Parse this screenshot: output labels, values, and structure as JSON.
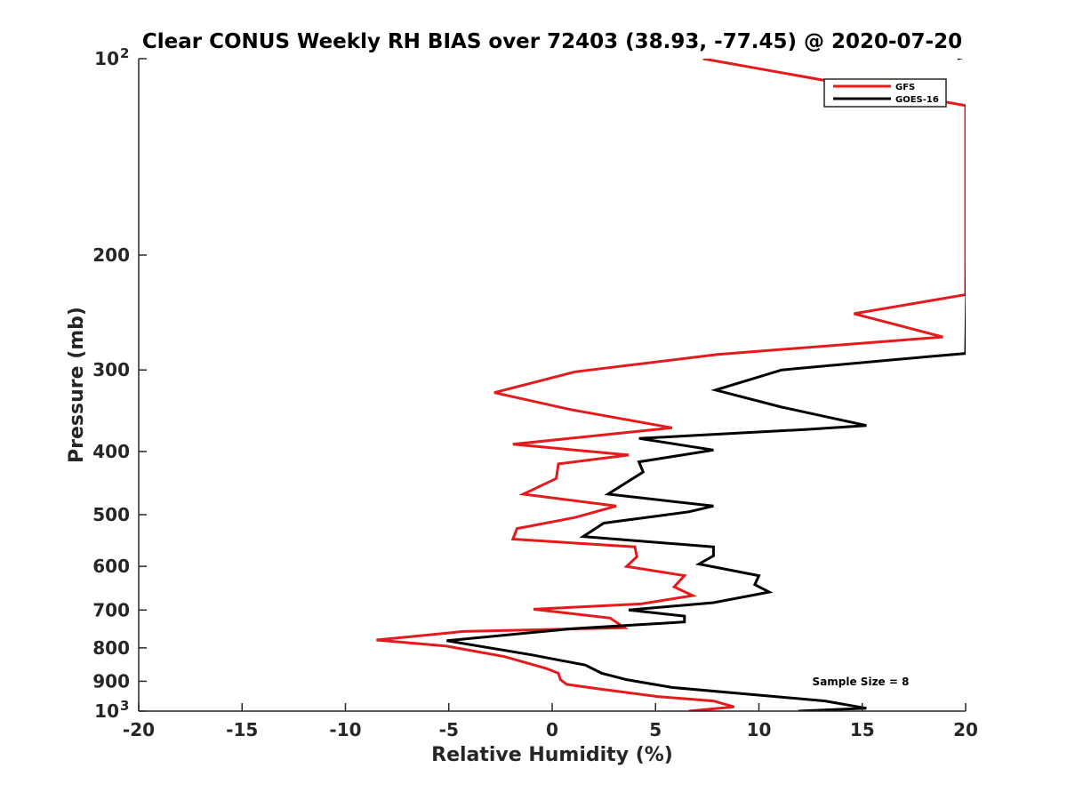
{
  "chart_data": {
    "type": "line",
    "title": "Clear CONUS Weekly RH BIAS over 72403 (38.93, -77.45) @ 2020-07-20",
    "xlabel": "Relative Humidity (%)",
    "ylabel": "Pressure (mb)",
    "xlim": [
      -20,
      20
    ],
    "ylim": [
      100,
      1000
    ],
    "y_scale": "log",
    "y_reversed": true,
    "grid": false,
    "legend_position": "top-right",
    "x_ticks": [
      "-20",
      "-15",
      "-10",
      "-5",
      "0",
      "5",
      "10",
      "15",
      "20"
    ],
    "y_ticks": [
      {
        "value": 100,
        "base": "10",
        "exp": "2"
      },
      {
        "value": 200,
        "label": "200"
      },
      {
        "value": 300,
        "label": "300"
      },
      {
        "value": 400,
        "label": "400"
      },
      {
        "value": 500,
        "label": "500"
      },
      {
        "value": 600,
        "label": "600"
      },
      {
        "value": 700,
        "label": "700"
      },
      {
        "value": 800,
        "label": "800"
      },
      {
        "value": 900,
        "label": "900"
      },
      {
        "value": 1000,
        "base": "10",
        "exp": "3"
      }
    ],
    "annotation": "Sample Size = 8",
    "series": [
      {
        "name": "GFS",
        "color": "#e41a1c",
        "points": [
          [
            7.3,
            100
          ],
          [
            20,
            118
          ],
          [
            20,
            230
          ],
          [
            14.6,
            246
          ],
          [
            18.9,
            267
          ],
          [
            8,
            284
          ],
          [
            1.1,
            302
          ],
          [
            -2.8,
            325
          ],
          [
            0.9,
            345
          ],
          [
            5.8,
            368
          ],
          [
            -1.9,
            390
          ],
          [
            3.7,
            405
          ],
          [
            0.3,
            418
          ],
          [
            0.2,
            440
          ],
          [
            -1.4,
            465
          ],
          [
            3.1,
            485
          ],
          [
            1.1,
            505
          ],
          [
            -1.7,
            525
          ],
          [
            -1.9,
            545
          ],
          [
            4,
            560
          ],
          [
            4.1,
            580
          ],
          [
            3.6,
            600
          ],
          [
            6.4,
            620
          ],
          [
            5.9,
            645
          ],
          [
            6.8,
            665
          ],
          [
            4.3,
            685
          ],
          [
            -0.9,
            698
          ],
          [
            2.8,
            720
          ],
          [
            3.5,
            745
          ],
          [
            -4.3,
            755
          ],
          [
            -8.5,
            778
          ],
          [
            -5.1,
            795
          ],
          [
            -2.3,
            825
          ],
          [
            -0.3,
            860
          ],
          [
            0.3,
            875
          ],
          [
            0.4,
            895
          ],
          [
            0.7,
            910
          ],
          [
            2.3,
            925
          ],
          [
            5.1,
            950
          ],
          [
            7.8,
            965
          ],
          [
            8.8,
            985
          ],
          [
            6.6,
            1000
          ]
        ]
      },
      {
        "name": "GOES-16",
        "color": "#000000",
        "points": [
          [
            19.6,
            100
          ],
          [
            20.2,
            99
          ],
          [
            20,
            283
          ],
          [
            18.3,
            286
          ],
          [
            11.1,
            300
          ],
          [
            7.9,
            322
          ],
          [
            11.1,
            342
          ],
          [
            15.2,
            365
          ],
          [
            12.3,
            370
          ],
          [
            4.2,
            382
          ],
          [
            7.8,
            398
          ],
          [
            4.2,
            415
          ],
          [
            4.4,
            430
          ],
          [
            2.7,
            465
          ],
          [
            7.8,
            485
          ],
          [
            6.6,
            495
          ],
          [
            2.5,
            515
          ],
          [
            1.5,
            540
          ],
          [
            7.8,
            560
          ],
          [
            7.8,
            578
          ],
          [
            7.1,
            595
          ],
          [
            10,
            620
          ],
          [
            9.8,
            640
          ],
          [
            10.5,
            657
          ],
          [
            7.8,
            682
          ],
          [
            3.7,
            700
          ],
          [
            6.4,
            715
          ],
          [
            6.4,
            730
          ],
          [
            0.9,
            748
          ],
          [
            -5.1,
            780
          ],
          [
            -1,
            820
          ],
          [
            1.6,
            850
          ],
          [
            2.4,
            875
          ],
          [
            3.6,
            895
          ],
          [
            5.8,
            920
          ],
          [
            13.2,
            965
          ],
          [
            14.8,
            985
          ],
          [
            15.2,
            990
          ],
          [
            11.9,
            1000
          ]
        ]
      }
    ]
  }
}
